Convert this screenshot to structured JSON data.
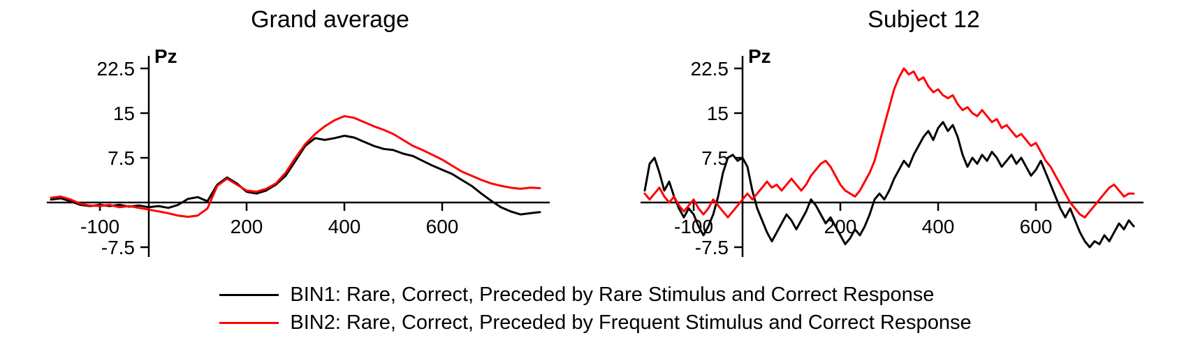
{
  "figure": {
    "background_color": "#ffffff"
  },
  "chart_data": [
    {
      "type": "line",
      "title": "Grand average",
      "electrode_label": "Pz",
      "x_ticks": [
        -100,
        200,
        400,
        600
      ],
      "y_ticks": [
        22.5,
        15,
        7.5,
        -7.5
      ],
      "x_range": [
        -200,
        800
      ],
      "ylim": [
        -7.5,
        22.5
      ],
      "grid": false,
      "x_start": -200,
      "x_step": 20,
      "series": [
        {
          "name": "BIN1",
          "color": "#000000",
          "values": [
            0.5,
            0.7,
            0.2,
            -0.4,
            -0.6,
            -0.4,
            -0.6,
            -0.4,
            -0.7,
            -0.5,
            -0.8,
            -0.6,
            -0.9,
            -0.4,
            0.6,
            0.9,
            0.2,
            3.0,
            4.2,
            3.2,
            1.8,
            1.5,
            2.0,
            3.0,
            4.5,
            7.0,
            9.5,
            10.8,
            10.5,
            10.8,
            11.2,
            10.9,
            10.2,
            9.5,
            9.0,
            8.8,
            8.2,
            7.8,
            7.0,
            6.2,
            5.5,
            4.8,
            3.8,
            2.8,
            1.5,
            0.3,
            -0.8,
            -1.5,
            -2.0,
            -1.8,
            -1.6
          ]
        },
        {
          "name": "BIN2",
          "color": "#ff0000",
          "values": [
            0.8,
            1.0,
            0.5,
            -0.2,
            -0.5,
            -0.6,
            -0.4,
            -0.8,
            -0.6,
            -0.9,
            -1.2,
            -1.5,
            -1.8,
            -2.2,
            -2.4,
            -2.2,
            -1.0,
            2.8,
            4.0,
            3.0,
            2.0,
            1.8,
            2.3,
            3.2,
            5.0,
            7.5,
            9.8,
            11.5,
            12.8,
            13.8,
            14.5,
            14.2,
            13.5,
            12.8,
            12.2,
            11.5,
            10.5,
            9.5,
            8.8,
            8.0,
            7.2,
            6.2,
            5.2,
            4.5,
            3.8,
            3.2,
            2.8,
            2.5,
            2.3,
            2.5,
            2.4
          ]
        }
      ]
    },
    {
      "type": "line",
      "title": "Subject 12",
      "electrode_label": "Pz",
      "x_ticks": [
        -100,
        200,
        400,
        600
      ],
      "y_ticks": [
        22.5,
        15,
        7.5,
        -7.5
      ],
      "x_range": [
        -200,
        800
      ],
      "ylim": [
        -7.5,
        22.5
      ],
      "grid": false,
      "x_start": -200,
      "x_step": 10,
      "series": [
        {
          "name": "BIN1",
          "color": "#000000",
          "values": [
            2.0,
            6.5,
            7.5,
            5.0,
            2.0,
            3.5,
            1.0,
            -1.0,
            -2.5,
            -1.0,
            -2.0,
            -4.0,
            -5.5,
            -4.0,
            -2.0,
            1.0,
            5.0,
            7.5,
            8.0,
            7.0,
            7.5,
            6.0,
            2.0,
            -1.0,
            -3.0,
            -5.0,
            -6.5,
            -5.0,
            -3.5,
            -2.0,
            -3.0,
            -4.5,
            -3.0,
            -1.5,
            0.5,
            -0.5,
            -2.0,
            -3.5,
            -2.5,
            -4.0,
            -5.5,
            -7.0,
            -6.0,
            -4.5,
            -5.5,
            -4.0,
            -2.0,
            0.5,
            1.5,
            0.5,
            2.0,
            4.0,
            5.5,
            7.0,
            6.0,
            8.0,
            9.5,
            11.0,
            12.0,
            10.5,
            12.5,
            13.5,
            12.0,
            13.0,
            11.0,
            8.0,
            6.0,
            7.5,
            6.5,
            8.0,
            7.0,
            8.5,
            7.5,
            6.0,
            7.0,
            8.0,
            6.5,
            7.5,
            6.0,
            4.5,
            5.5,
            7.0,
            5.0,
            3.0,
            1.0,
            -1.0,
            -2.5,
            -1.0,
            -3.0,
            -5.0,
            -6.5,
            -7.5,
            -6.5,
            -7.0,
            -5.5,
            -6.5,
            -5.0,
            -3.5,
            -4.5,
            -3.0,
            -4.0
          ]
        },
        {
          "name": "BIN2",
          "color": "#ff0000",
          "values": [
            1.5,
            0.5,
            1.5,
            2.5,
            1.0,
            0.0,
            1.0,
            -0.5,
            -1.5,
            -0.5,
            0.5,
            -1.0,
            -2.0,
            -1.0,
            0.5,
            -0.5,
            -1.5,
            -2.5,
            -1.5,
            -0.5,
            0.5,
            1.5,
            0.5,
            1.5,
            2.5,
            3.5,
            2.5,
            3.0,
            2.0,
            3.0,
            4.0,
            3.0,
            2.0,
            3.0,
            4.5,
            5.5,
            6.5,
            7.0,
            6.0,
            4.5,
            3.0,
            2.0,
            1.5,
            1.0,
            2.0,
            3.5,
            5.0,
            7.0,
            10.0,
            13.0,
            16.0,
            19.0,
            21.0,
            22.5,
            21.5,
            22.0,
            20.5,
            21.0,
            19.5,
            18.5,
            19.0,
            18.0,
            17.5,
            18.0,
            16.5,
            15.5,
            16.0,
            15.0,
            14.5,
            15.5,
            14.5,
            13.5,
            14.0,
            12.5,
            13.0,
            12.0,
            11.0,
            11.5,
            10.5,
            9.5,
            10.0,
            8.5,
            7.0,
            6.0,
            4.5,
            3.0,
            1.5,
            0.0,
            -1.0,
            -2.0,
            -2.5,
            -1.5,
            -0.5,
            0.5,
            1.5,
            2.5,
            3.0,
            2.0,
            1.0,
            1.5,
            1.5
          ]
        }
      ]
    }
  ],
  "legend": {
    "position": "bottom",
    "items": [
      {
        "name": "BIN1",
        "color": "#000000",
        "label": "BIN1: Rare, Correct, Preceded by Rare Stimulus and Correct Response"
      },
      {
        "name": "BIN2",
        "color": "#ff0000",
        "label": "BIN2: Rare, Correct, Preceded by Frequent Stimulus and Correct Response"
      }
    ]
  }
}
